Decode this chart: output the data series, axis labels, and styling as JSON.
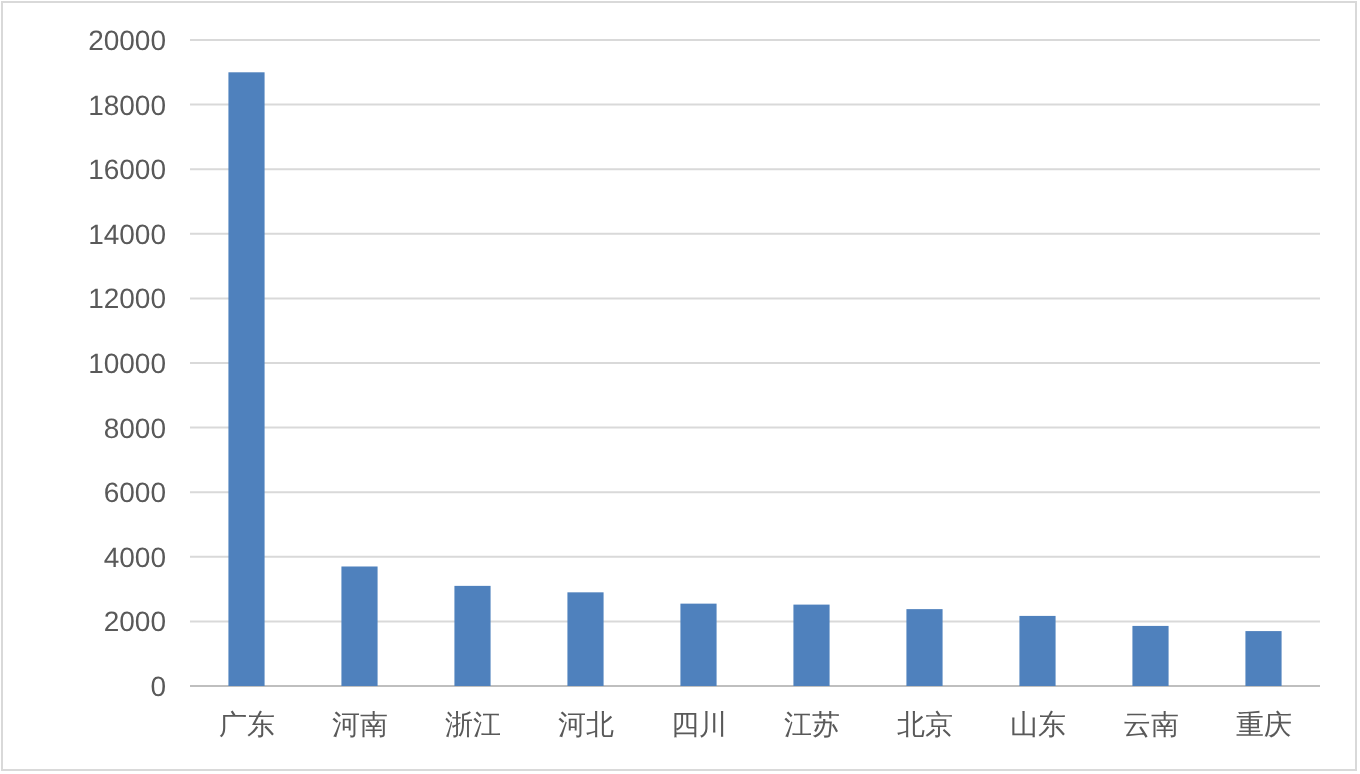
{
  "chart_data": {
    "type": "bar",
    "categories": [
      "广东",
      "河南",
      "浙江",
      "河北",
      "四川",
      "江苏",
      "北京",
      "山东",
      "云南",
      "重庆"
    ],
    "values": [
      19000,
      3700,
      3100,
      2900,
      2550,
      2520,
      2380,
      2170,
      1860,
      1700
    ],
    "color": "#4f81bd",
    "ylim": [
      0,
      20000
    ],
    "yticks": [
      0,
      2000,
      4000,
      6000,
      8000,
      10000,
      12000,
      14000,
      16000,
      18000,
      20000
    ],
    "grid": "y"
  }
}
